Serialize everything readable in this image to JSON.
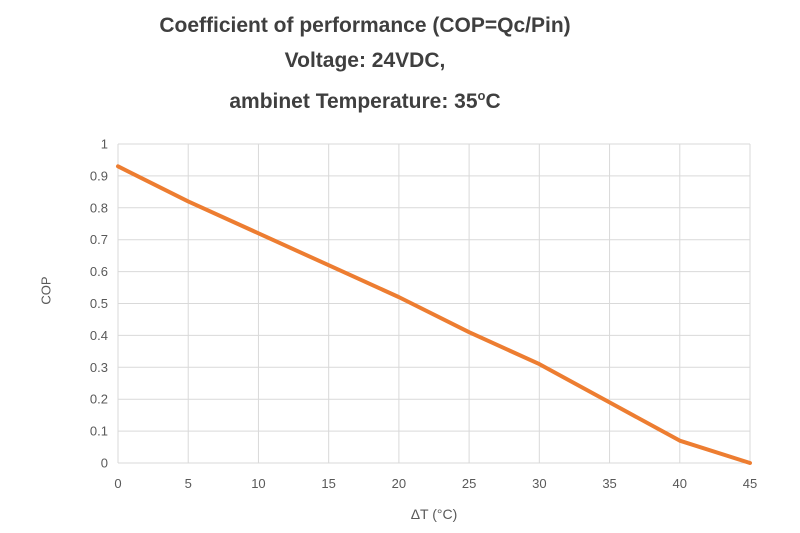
{
  "chart_data": {
    "type": "line",
    "title": {
      "line1": "Coefficient of performance (COP=Qc/Pin)",
      "line2": "Voltage: 24VDC,",
      "line3_prefix": "ambinet Temperature: 35",
      "line3_degree": "o",
      "line3_suffix": "C"
    },
    "xlabel": "ΔT (°C)",
    "ylabel": "COP",
    "x": [
      0,
      5,
      10,
      15,
      20,
      25,
      30,
      35,
      40,
      45
    ],
    "series": [
      {
        "name": "COP",
        "values": [
          0.93,
          0.82,
          0.72,
          0.62,
          0.52,
          0.41,
          0.31,
          0.19,
          0.07,
          0
        ]
      }
    ],
    "xlim": [
      0,
      45
    ],
    "ylim": [
      0,
      1
    ],
    "x_tick_labels": [
      "0",
      "5",
      "10",
      "15",
      "20",
      "25",
      "30",
      "35",
      "40",
      "45"
    ],
    "y_tick_labels": [
      "1",
      "0.9",
      "0.8",
      "0.7",
      "0.6",
      "0.5",
      "0.4",
      "0.3",
      "0.2",
      "0.1",
      "0"
    ],
    "grid": true,
    "legend": "none",
    "colors": {
      "line": "#ED7D31",
      "grid": "#D9D9D9",
      "tick_text": "#595959",
      "title_text": "#3F3F3F"
    }
  }
}
